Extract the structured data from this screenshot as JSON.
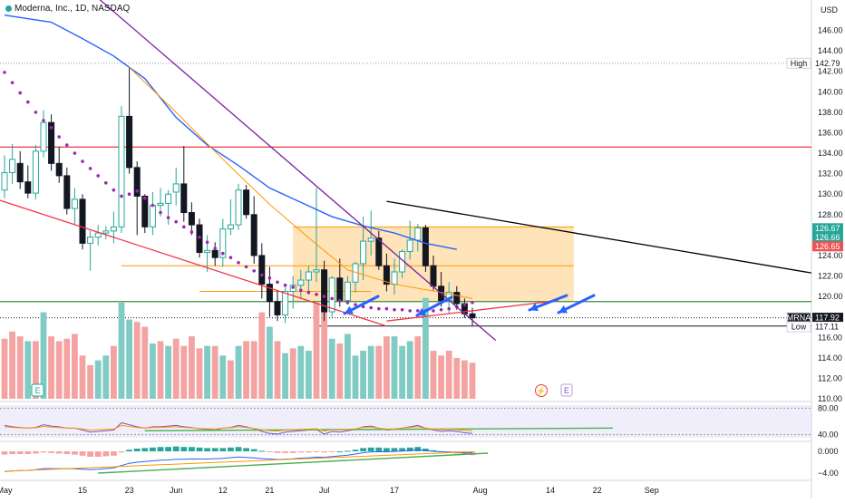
{
  "legend": {
    "symbol_line": "Moderna, Inc., 1D, NASDAQ"
  },
  "currency": "USD",
  "badges": {
    "earnings": "E",
    "dividend": "⚡"
  },
  "price_tags": [
    {
      "label": "High",
      "value": "142.79",
      "price": 142.79,
      "bg": "#ffffff",
      "fg": "#131722"
    },
    {
      "label": "",
      "value": "126.67",
      "price": 126.67,
      "bg": "#26a69a",
      "fg": "#ffffff"
    },
    {
      "label": "",
      "value": "126.66",
      "price": 126.66,
      "bg": "#26a69a",
      "fg": "#ffffff"
    },
    {
      "label": "",
      "value": "126.65",
      "price": 126.65,
      "bg": "#ef5350",
      "fg": "#ffffff"
    },
    {
      "label": "MRNA",
      "value": "117.92",
      "price": 117.92,
      "bg": "#131722",
      "fg": "#ffffff"
    },
    {
      "label": "Low",
      "value": "117.11",
      "price": 117.11,
      "bg": "#ffffff",
      "fg": "#131722"
    }
  ],
  "colors": {
    "up": "#26a69a",
    "down": "#131722",
    "vol_up": "#80cbc4",
    "vol_down": "#f4a3a3",
    "ma_blue": "#2962ff",
    "ma_orange": "#ff9800",
    "psar": "#9c27b0",
    "resistance": "#f23645",
    "support": "#388e3c",
    "box": "#ffcc80",
    "arrow": "#2962ff",
    "trend_black": "#000000",
    "trend_purple": "#7b1fa2",
    "trend_red": "#f23645"
  },
  "chart_data": {
    "type": "candlestick",
    "title": "Moderna, Inc., 1D, NASDAQ",
    "ylim": [
      110,
      148
    ],
    "y_ticks": [
      110,
      112,
      114,
      116,
      118,
      120,
      122,
      124,
      126,
      128,
      130,
      132,
      134,
      136,
      138,
      140,
      142,
      144,
      146
    ],
    "x_ticks": [
      {
        "label": "May",
        "i": 0
      },
      {
        "label": "15",
        "i": 10
      },
      {
        "label": "23",
        "i": 16
      },
      {
        "label": "Jun",
        "i": 22
      },
      {
        "label": "12",
        "i": 28
      },
      {
        "label": "21",
        "i": 34
      },
      {
        "label": "Jul",
        "i": 41
      },
      {
        "label": "17",
        "i": 50
      },
      {
        "label": "Aug",
        "i": 61
      },
      {
        "label": "14",
        "i": 70
      },
      {
        "label": "22",
        "i": 76
      },
      {
        "label": "Sep",
        "i": 83
      }
    ],
    "candles": [
      [
        130.4,
        133.8,
        129.6,
        132.1
      ],
      [
        132.1,
        134.9,
        131.0,
        133.4
      ],
      [
        133.0,
        134.2,
        130.5,
        131.2
      ],
      [
        131.2,
        132.8,
        129.6,
        130.1
      ],
      [
        130.1,
        134.8,
        129.5,
        134.2
      ],
      [
        134.2,
        138.2,
        133.6,
        137.0
      ],
      [
        137.0,
        137.8,
        132.3,
        133.0
      ],
      [
        133.0,
        134.6,
        131.1,
        131.8
      ],
      [
        131.8,
        132.6,
        128.0,
        128.6
      ],
      [
        128.6,
        130.6,
        127.0,
        129.5
      ],
      [
        129.5,
        130.0,
        124.6,
        125.2
      ],
      [
        125.2,
        126.4,
        122.5,
        125.8
      ],
      [
        125.8,
        127.0,
        125.0,
        126.2
      ],
      [
        126.2,
        126.9,
        125.6,
        126.4
      ],
      [
        126.4,
        128.3,
        125.2,
        126.8
      ],
      [
        126.8,
        138.6,
        126.2,
        137.6
      ],
      [
        137.6,
        142.4,
        132.0,
        132.6
      ],
      [
        132.6,
        133.2,
        126.0,
        129.8
      ],
      [
        129.8,
        130.0,
        126.2,
        126.8
      ],
      [
        126.8,
        130.2,
        126.0,
        128.9
      ],
      [
        128.9,
        130.6,
        127.8,
        129.1
      ],
      [
        129.1,
        130.4,
        127.0,
        130.0
      ],
      [
        130.2,
        132.6,
        128.9,
        131.0
      ],
      [
        131.0,
        134.7,
        127.3,
        128.2
      ],
      [
        128.2,
        129.2,
        126.0,
        127.0
      ],
      [
        127.0,
        127.6,
        123.8,
        124.3
      ],
      [
        124.3,
        126.0,
        122.4,
        124.5
      ],
      [
        124.5,
        125.3,
        123.0,
        123.8
      ],
      [
        123.8,
        127.6,
        122.9,
        126.6
      ],
      [
        126.6,
        129.5,
        126.0,
        127.0
      ],
      [
        127.0,
        131.0,
        126.5,
        130.4
      ],
      [
        130.4,
        130.9,
        127.6,
        128.0
      ],
      [
        128.0,
        129.8,
        123.2,
        124.0
      ],
      [
        124.0,
        125.2,
        119.8,
        121.2
      ],
      [
        121.2,
        122.9,
        118.0,
        119.5
      ],
      [
        119.5,
        120.6,
        117.6,
        118.2
      ],
      [
        118.2,
        121.0,
        117.4,
        120.5
      ],
      [
        120.5,
        122.0,
        118.8,
        121.1
      ],
      [
        121.1,
        122.6,
        119.8,
        121.6
      ],
      [
        121.6,
        123.0,
        120.2,
        122.4
      ],
      [
        122.4,
        130.6,
        121.4,
        122.6
      ],
      [
        122.6,
        123.5,
        117.6,
        118.5
      ],
      [
        118.5,
        122.0,
        118.0,
        121.8
      ],
      [
        121.8,
        123.7,
        119.0,
        119.6
      ],
      [
        119.6,
        122.0,
        119.2,
        121.4
      ],
      [
        121.4,
        123.4,
        120.4,
        123.2
      ],
      [
        123.2,
        127.8,
        121.6,
        125.4
      ],
      [
        125.4,
        128.4,
        124.0,
        125.7
      ],
      [
        125.7,
        126.4,
        122.6,
        123.0
      ],
      [
        123.0,
        124.2,
        120.5,
        121.2
      ],
      [
        121.2,
        123.7,
        120.2,
        122.4
      ],
      [
        122.4,
        124.6,
        121.8,
        124.4
      ],
      [
        124.4,
        127.4,
        123.6,
        125.5
      ],
      [
        125.5,
        127.1,
        124.4,
        126.7
      ],
      [
        126.7,
        127.0,
        122.4,
        123.0
      ],
      [
        123.0,
        124.0,
        120.6,
        121.0
      ],
      [
        121.0,
        122.4,
        119.0,
        119.6
      ],
      [
        119.6,
        121.4,
        118.3,
        120.4
      ],
      [
        120.4,
        121.0,
        118.7,
        119.3
      ],
      [
        119.3,
        119.8,
        117.9,
        118.3
      ],
      [
        118.3,
        118.9,
        117.1,
        117.92
      ]
    ],
    "volume_up": [
      0,
      0,
      0,
      1,
      0,
      1,
      0,
      0,
      0,
      0,
      0,
      0,
      1,
      1,
      0,
      1,
      1,
      0,
      0,
      1,
      0,
      1,
      0,
      0,
      0,
      0,
      1,
      0,
      1,
      0,
      1,
      0,
      0,
      0,
      1,
      0,
      1,
      0,
      1,
      1,
      0,
      0,
      1,
      0,
      1,
      1,
      1,
      1,
      0,
      0,
      1,
      1,
      1,
      0,
      1,
      0,
      0,
      0,
      0,
      0,
      0
    ],
    "volume": [
      25,
      28,
      26,
      24,
      24,
      36,
      26,
      24,
      25,
      27,
      18,
      14,
      16,
      18,
      22,
      40,
      33,
      32,
      30,
      23,
      24,
      22,
      25,
      22,
      26,
      21,
      22,
      22,
      18,
      16,
      22,
      24,
      24,
      36,
      30,
      24,
      19,
      21,
      22,
      20,
      40,
      36,
      25,
      23,
      27,
      18,
      20,
      22,
      22,
      26,
      26,
      22,
      24,
      26,
      42,
      20,
      18,
      20,
      17,
      16,
      15
    ],
    "rsi": [
      54,
      52,
      51,
      50,
      51,
      55,
      53,
      52,
      50,
      50,
      47,
      44,
      45,
      46,
      47,
      58,
      55,
      52,
      50,
      52,
      52,
      53,
      54,
      52,
      51,
      49,
      48,
      47,
      50,
      51,
      54,
      52,
      49,
      45,
      42,
      41,
      44,
      45,
      46,
      47,
      48,
      41,
      45,
      44,
      46,
      48,
      52,
      53,
      50,
      47,
      48,
      50,
      52,
      54,
      50,
      47,
      45,
      46,
      45,
      43,
      42
    ],
    "rsi_levels": [
      80,
      40
    ],
    "macd_ticks": [
      "0.000",
      "−4.00"
    ],
    "macd_hist": [
      -0.6,
      -0.5,
      -0.5,
      -0.5,
      -0.4,
      -0.2,
      -0.3,
      -0.4,
      -0.5,
      -0.6,
      -0.8,
      -1.0,
      -1.0,
      -0.9,
      -0.8,
      -0.2,
      0.3,
      0.5,
      0.6,
      0.7,
      0.8,
      0.8,
      0.9,
      0.8,
      0.8,
      0.7,
      0.6,
      0.6,
      0.6,
      0.7,
      0.8,
      0.6,
      0.4,
      0.1,
      -0.1,
      -0.3,
      -0.3,
      -0.3,
      -0.2,
      -0.2,
      -0.1,
      -0.2,
      -0.1,
      0.0,
      0.1,
      0.3,
      0.6,
      0.7,
      0.7,
      0.6,
      0.6,
      0.6,
      0.7,
      0.8,
      0.5,
      0.2,
      0.0,
      -0.2,
      -0.4,
      -0.6,
      -0.7
    ],
    "ma_blue": [
      [
        0,
        147.5
      ],
      [
        6,
        146.8
      ],
      [
        10,
        145.2
      ],
      [
        14,
        143.5
      ],
      [
        18,
        141.3
      ],
      [
        22,
        137.5
      ],
      [
        26,
        134.8
      ],
      [
        30,
        132.8
      ],
      [
        34,
        130.6
      ],
      [
        38,
        129.2
      ],
      [
        42,
        127.8
      ],
      [
        46,
        126.9
      ],
      [
        50,
        126.2
      ],
      [
        54,
        125.2
      ],
      [
        58,
        124.6
      ]
    ],
    "ma_orange": [
      [
        16,
        142.4
      ],
      [
        22,
        138.0
      ],
      [
        28,
        133.4
      ],
      [
        34,
        129.0
      ],
      [
        40,
        125.1
      ],
      [
        44,
        122.6
      ],
      [
        50,
        121.2
      ],
      [
        56,
        120.4
      ],
      [
        60,
        119.8
      ]
    ],
    "psar": [
      [
        0,
        141.9
      ],
      [
        1,
        140.9
      ],
      [
        2,
        139.9
      ],
      [
        3,
        139.0
      ],
      [
        4,
        138.0
      ],
      [
        5,
        137.2
      ],
      [
        6,
        136.5
      ],
      [
        7,
        135.6
      ],
      [
        8,
        134.8
      ],
      [
        9,
        134.0
      ],
      [
        10,
        133.2
      ],
      [
        11,
        132.5
      ],
      [
        12,
        131.8
      ],
      [
        13,
        131.1
      ],
      [
        14,
        130.4
      ],
      [
        15,
        129.8
      ],
      [
        16,
        130.0
      ],
      [
        17,
        130.3
      ],
      [
        18,
        129.6
      ],
      [
        19,
        128.9
      ],
      [
        20,
        128.2
      ],
      [
        21,
        127.7
      ],
      [
        22,
        127.3
      ],
      [
        23,
        126.8
      ],
      [
        24,
        126.3
      ],
      [
        25,
        125.8
      ],
      [
        26,
        125.3
      ],
      [
        27,
        124.7
      ],
      [
        28,
        124.2
      ],
      [
        29,
        123.8
      ],
      [
        30,
        123.3
      ],
      [
        31,
        122.9
      ],
      [
        32,
        122.5
      ],
      [
        33,
        122.1
      ],
      [
        34,
        121.8
      ],
      [
        35,
        121.4
      ],
      [
        36,
        121.1
      ],
      [
        37,
        120.9
      ],
      [
        38,
        120.6
      ],
      [
        39,
        120.4
      ],
      [
        40,
        120.2
      ],
      [
        41,
        120.0
      ],
      [
        42,
        119.8
      ],
      [
        43,
        119.6
      ],
      [
        44,
        119.4
      ],
      [
        45,
        119.2
      ],
      [
        46,
        119.0
      ],
      [
        47,
        118.9
      ],
      [
        48,
        118.8
      ],
      [
        49,
        118.8
      ],
      [
        50,
        118.7
      ],
      [
        51,
        118.7
      ],
      [
        52,
        118.6
      ],
      [
        53,
        118.6
      ],
      [
        54,
        118.6
      ],
      [
        55,
        118.6
      ],
      [
        56,
        118.7
      ],
      [
        57,
        118.8
      ],
      [
        58,
        119.0
      ],
      [
        59,
        119.2
      ],
      [
        60,
        119.4
      ]
    ],
    "levels": {
      "resistance": 134.6,
      "support": 119.5,
      "box": [
        119.5,
        126.8
      ]
    }
  }
}
